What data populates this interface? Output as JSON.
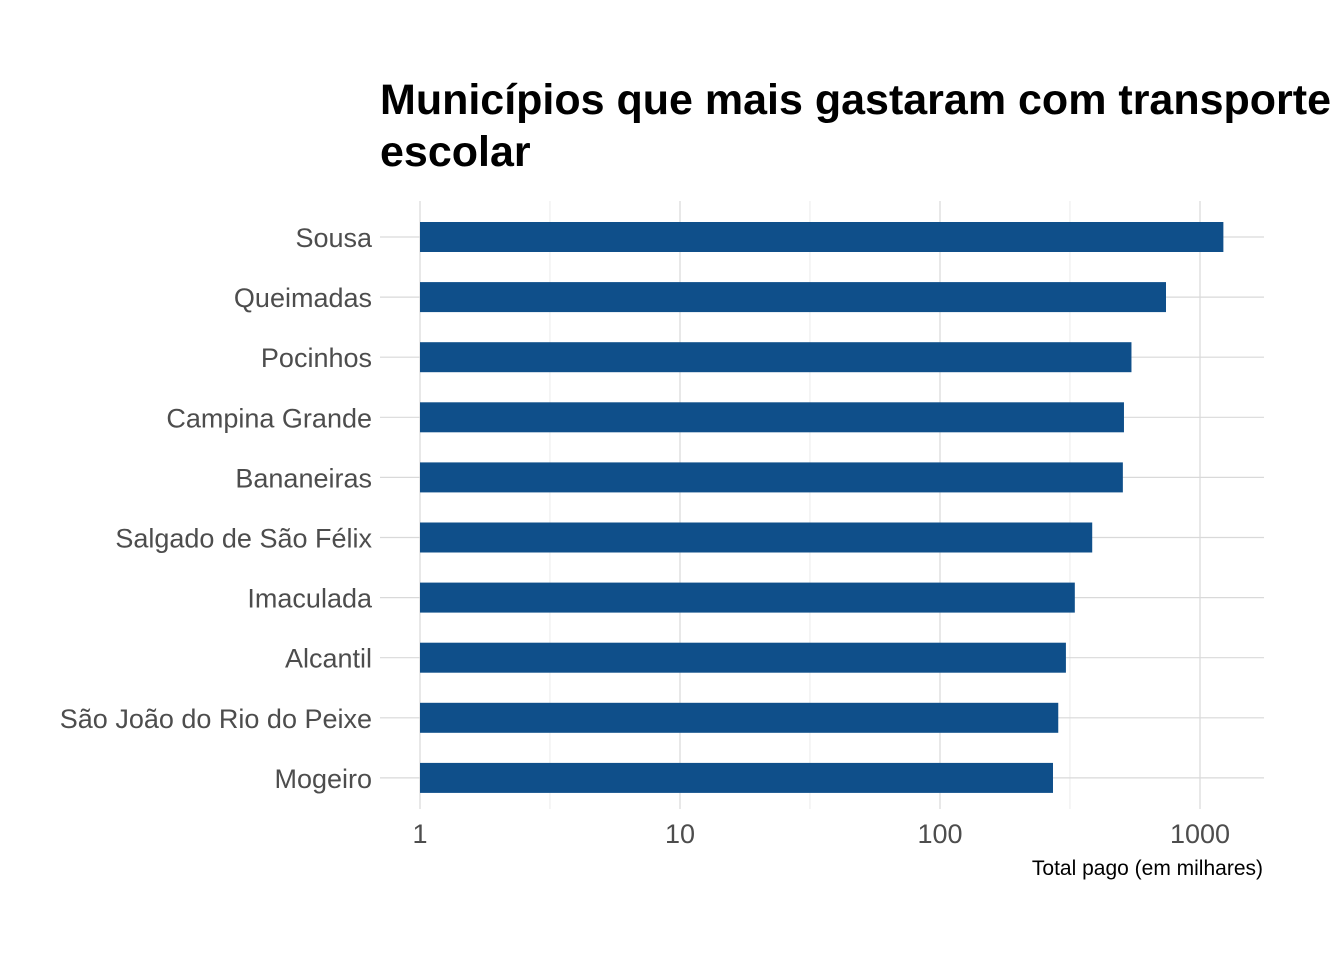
{
  "chart_data": {
    "type": "bar",
    "orientation": "horizontal",
    "title": "Municípios que mais gastaram com transporte escolar",
    "xlabel": "Total pago (em milhares)",
    "ylabel": "",
    "x_scale": "log10",
    "xlim": [
      1,
      1800
    ],
    "x_ticks": [
      1,
      10,
      100,
      1000
    ],
    "x_tick_labels": [
      "1",
      "10",
      "100",
      "1000"
    ],
    "x_minor_ticks": [
      3.16,
      31.6,
      316
    ],
    "grid": true,
    "legend": "none",
    "bar_color": "#0f4f8a",
    "categories": [
      "Sousa",
      "Queimadas",
      "Pocinhos",
      "Campina Grande",
      "Bananeiras",
      "Salgado de São Félix",
      "Imaculada",
      "Alcantil",
      "São João do Rio do Peixe",
      "Mogeiro"
    ],
    "values": [
      1230,
      740,
      545,
      510,
      505,
      385,
      330,
      305,
      285,
      272
    ]
  }
}
